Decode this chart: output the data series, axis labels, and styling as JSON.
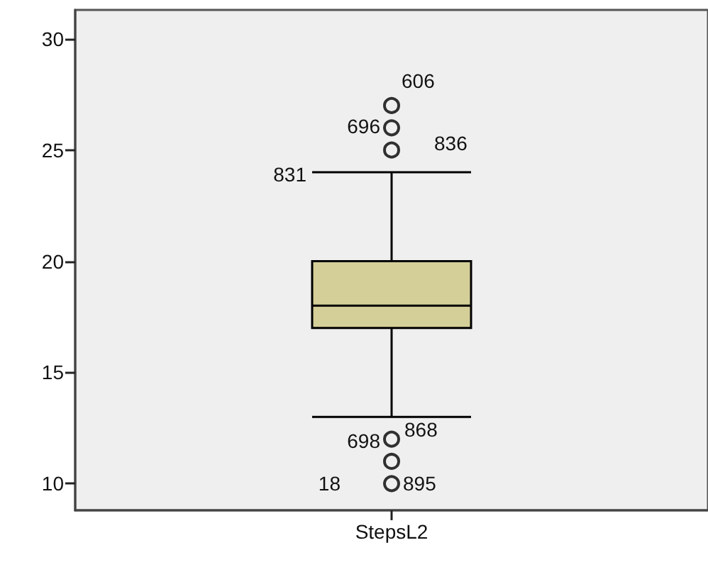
{
  "chart_data": {
    "type": "box",
    "categories": [
      "StepsL2"
    ],
    "boxes": [
      {
        "low": 13,
        "q1": 17,
        "median": 18,
        "q3": 20,
        "high": 24,
        "outliers": [
          27,
          26,
          25,
          12,
          11,
          10
        ]
      }
    ],
    "color": "#d4cf99",
    "ylim": [
      8.8,
      31.3
    ],
    "yticks": [
      10,
      15,
      20,
      25,
      30
    ],
    "grid": false,
    "annotations": [
      "606",
      "696",
      "836",
      "831",
      "868",
      "698",
      "18",
      "895"
    ]
  }
}
